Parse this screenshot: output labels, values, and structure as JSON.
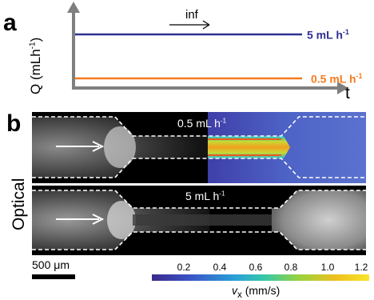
{
  "panel_a": {
    "letter": "a",
    "y_axis_main": "Q (mLh",
    "y_axis_sup": "-1",
    "y_axis_close": ")",
    "x_axis_label": "t",
    "arrow_label": "inf",
    "high_flow": {
      "value": "5 mL h",
      "sup": "-1",
      "color": "#2e3192"
    },
    "low_flow": {
      "value": "0.5 mL h",
      "sup": "-1",
      "color": "#f47b20"
    },
    "axis_color": "#7f7f7f"
  },
  "panel_b": {
    "letter": "b",
    "side_label": "Optical",
    "top_image_label": {
      "value": "0.5 mL h",
      "sup": "-1"
    },
    "bottom_image_label": {
      "value": "5 mL h",
      "sup": "-1"
    },
    "scale_bar_label": "500 μm",
    "colorbar": {
      "ticks": [
        "0.2",
        "0.4",
        "0.6",
        "0.8",
        "1.0",
        "1.2"
      ],
      "title_var": "v",
      "title_sub": "x",
      "title_unit": " (mm/s)"
    }
  }
}
